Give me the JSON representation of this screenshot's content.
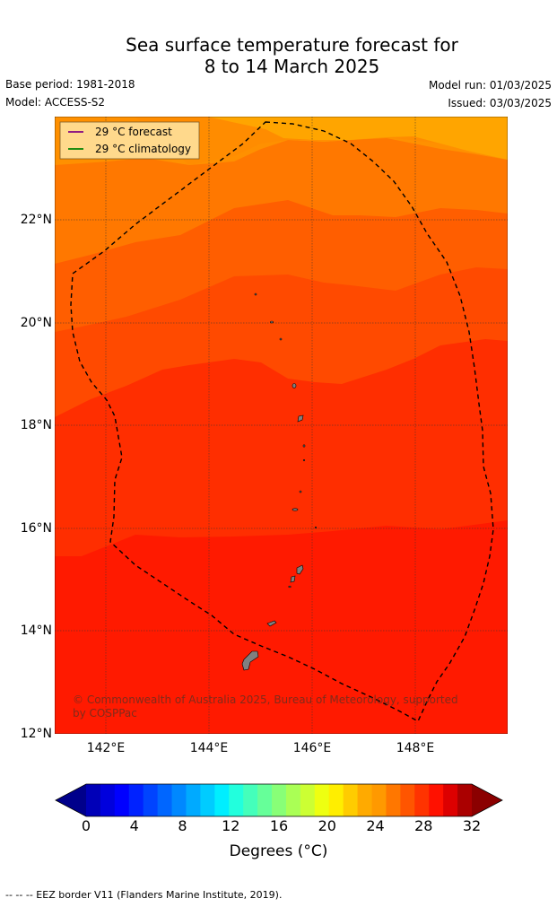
{
  "title_line1": "Sea surface temperature forecast for",
  "title_line2": "8 to 14 March 2025",
  "base_period": "Base period: 1981-2018",
  "model": "Model: ACCESS-S2",
  "model_run": "Model run: 01/03/2025",
  "issued": "Issued: 03/03/2025",
  "legend": {
    "forecast": "29 °C  forecast",
    "climatology": "29 °C  climatology",
    "forecast_color": "#800080",
    "climatology_color": "#008000"
  },
  "lat_labels": [
    "22°N",
    "20°N",
    "18°N",
    "16°N",
    "14°N",
    "12°N"
  ],
  "lon_labels": [
    "142°E",
    "144°E",
    "146°E",
    "148°E"
  ],
  "copyright_line1": "© Commonwealth of Australia 2025, Bureau of Meteorology, supported",
  "copyright_line2": "by COSPPac",
  "colorbar": {
    "ticks": [
      "0",
      "4",
      "8",
      "12",
      "16",
      "20",
      "24",
      "28",
      "32"
    ],
    "label": "Degrees (°C)",
    "colors": [
      "#00008b",
      "#0000b8",
      "#0000dd",
      "#0000ff",
      "#0022ff",
      "#0044ff",
      "#0066ff",
      "#0088ff",
      "#00aaff",
      "#00ccff",
      "#00eeff",
      "#22ffdd",
      "#44ffbb",
      "#66ff99",
      "#88ff77",
      "#aaff55",
      "#ccff33",
      "#eeff11",
      "#ffee00",
      "#ffcc00",
      "#ffaa00",
      "#ff9900",
      "#ff7700",
      "#ff5500",
      "#ff3300",
      "#ff1100",
      "#dd0000",
      "#aa0000",
      "#8b0000"
    ]
  },
  "footer": "--  --  -- EEZ border V11 (Flanders Marine Institute, 2019)."
}
